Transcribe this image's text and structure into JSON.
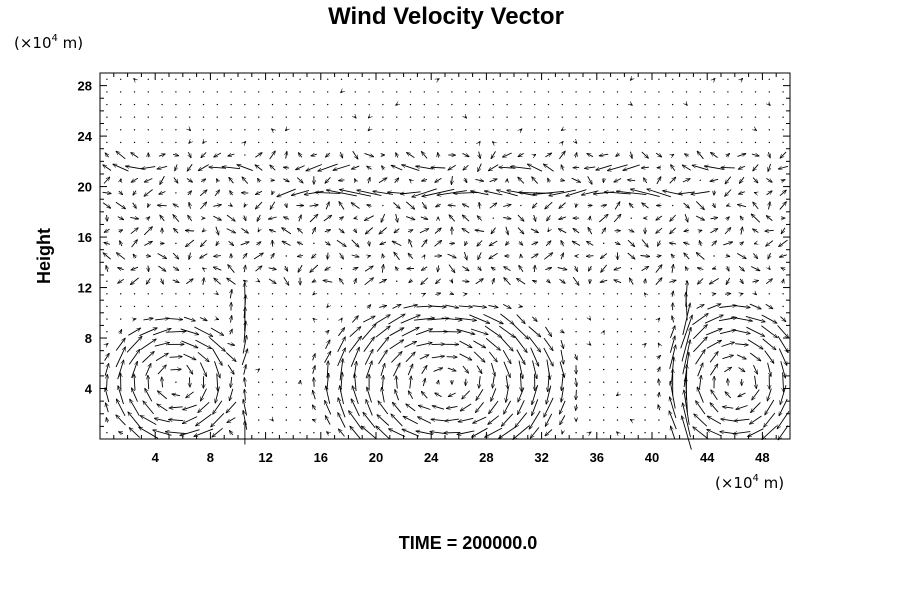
{
  "chart_data": {
    "type": "vector-field",
    "title": "Wind Velocity Vector",
    "ylabel": "Height",
    "y_unit": {
      "base": "(×10",
      "exp": "4",
      "rest": " m)"
    },
    "x_unit": {
      "base": "(×10",
      "exp": "4",
      "rest": " m)"
    },
    "xlim": [
      0,
      50
    ],
    "ylim": [
      0,
      29
    ],
    "x_ticks": [
      4,
      8,
      12,
      16,
      20,
      24,
      28,
      32,
      36,
      40,
      44,
      48
    ],
    "y_ticks": [
      4,
      8,
      12,
      16,
      20,
      24,
      28
    ],
    "grid_x_spacing": 1,
    "grid_y_spacing": 1,
    "circulation_cells": [
      {
        "center": [
          5.5,
          4.5
        ],
        "radius": [
          4.5,
          4.5
        ],
        "rotation": "clockwise"
      },
      {
        "center": [
          25,
          4.5
        ],
        "radius": [
          8,
          5.5
        ],
        "rotation": "clockwise"
      },
      {
        "center": [
          46,
          4.5
        ],
        "radius": [
          4.5,
          5.5
        ],
        "rotation": "clockwise"
      }
    ],
    "updrafts": [
      10.2,
      42.3
    ],
    "upper_jet": {
      "y": 19.1,
      "x_range": [
        13,
        44
      ],
      "direction": "westward"
    }
  },
  "footer": {
    "time_label": "TIME = 200000.0"
  }
}
